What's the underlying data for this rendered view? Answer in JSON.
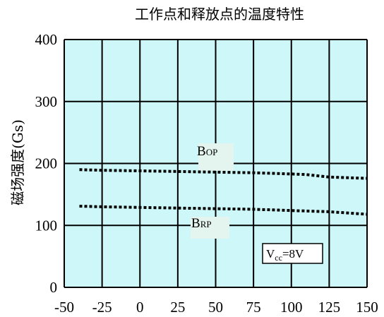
{
  "chart_data": {
    "type": "line",
    "title": "工作点和释放点的温度特性",
    "ylabel": "磁场强度(Gs)",
    "xlabel": "",
    "xlim": [
      -50,
      150
    ],
    "ylim": [
      0,
      400
    ],
    "x_ticks": [
      "-50",
      "-25",
      "0",
      "25",
      "50",
      "75",
      "100",
      "125",
      "150"
    ],
    "y_ticks": [
      "0",
      "100",
      "200",
      "300",
      "400"
    ],
    "x_tick_values": [
      -50,
      -25,
      0,
      25,
      50,
      75,
      100,
      125,
      150
    ],
    "y_tick_values": [
      0,
      100,
      200,
      300,
      400
    ],
    "grid": true,
    "series": [
      {
        "name": "BOP",
        "label_main": "B",
        "label_sub": "OP",
        "line_style": "dotted",
        "x": [
          -40,
          -25,
          0,
          25,
          50,
          75,
          100,
          110,
          125,
          150
        ],
        "y": [
          190,
          189,
          188,
          187,
          186,
          185,
          183,
          182,
          178,
          176
        ]
      },
      {
        "name": "BRP",
        "label_main": "B",
        "label_sub": "RP",
        "line_style": "dotted",
        "x": [
          -40,
          -25,
          0,
          25,
          50,
          75,
          100,
          125,
          150
        ],
        "y": [
          131,
          130,
          129,
          128,
          127,
          126,
          124,
          122,
          118
        ]
      }
    ],
    "annotation": {
      "main": "V",
      "sub": "cc",
      "rest": "=8V"
    },
    "colors": {
      "plot_background": "#cdf7f9",
      "label_background": "#e4f5ef",
      "grid": "#000000",
      "series": "#000000"
    }
  }
}
